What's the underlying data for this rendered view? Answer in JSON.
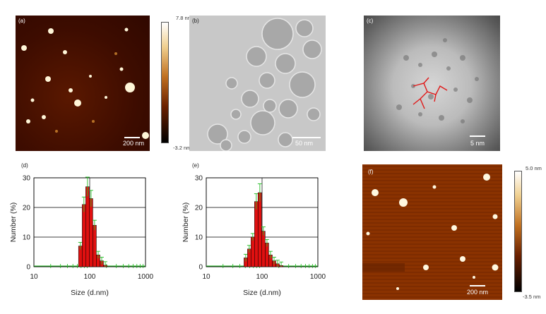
{
  "panels": {
    "a": {
      "label": "(a)",
      "scale": "200 nm",
      "cbar_max": "7.8 nm",
      "cbar_min": "-3.2 nm"
    },
    "b": {
      "label": "(b)",
      "scale": "50 nm"
    },
    "c": {
      "label": "(c)",
      "scale": "5 nm"
    },
    "d": {
      "label": "(d)"
    },
    "e": {
      "label": "(e)"
    },
    "f": {
      "label": "(f)",
      "scale": "200 nm",
      "cbar_max": "5.0 nm",
      "cbar_min": "-3.5 nm"
    }
  },
  "colors": {
    "bar": "#e01010",
    "error": "#22bb22",
    "afm_dark": "#3a0a00",
    "afm_mid": "#8a3000"
  },
  "chart_data": [
    {
      "type": "bar",
      "panel": "d",
      "xscale": "log",
      "xlim": [
        10,
        1000
      ],
      "ylim": [
        0,
        30
      ],
      "xticks": [
        "10",
        "100",
        "1000"
      ],
      "yticks": [
        "0",
        "10",
        "20",
        "30"
      ],
      "xlabel": "Size (d.nm)",
      "ylabel": "Number (%)",
      "x": [
        68,
        79,
        91,
        106,
        122,
        142,
        164,
        190
      ],
      "values": [
        7,
        21,
        27,
        23,
        14,
        4,
        2,
        0.5
      ]
    },
    {
      "type": "bar",
      "panel": "e",
      "xscale": "log",
      "xlim": [
        10,
        1000
      ],
      "ylim": [
        0,
        30
      ],
      "xticks": [
        "10",
        "100",
        "1000"
      ],
      "yticks": [
        "0",
        "10",
        "20",
        "30"
      ],
      "xlabel": "Size (d.nm)",
      "ylabel": "Number (%)",
      "x": [
        51,
        59,
        68,
        79,
        91,
        106,
        122,
        142,
        164,
        190,
        220
      ],
      "values": [
        3,
        6,
        10,
        22,
        25,
        12,
        8,
        4,
        2,
        1,
        0.4
      ]
    }
  ]
}
